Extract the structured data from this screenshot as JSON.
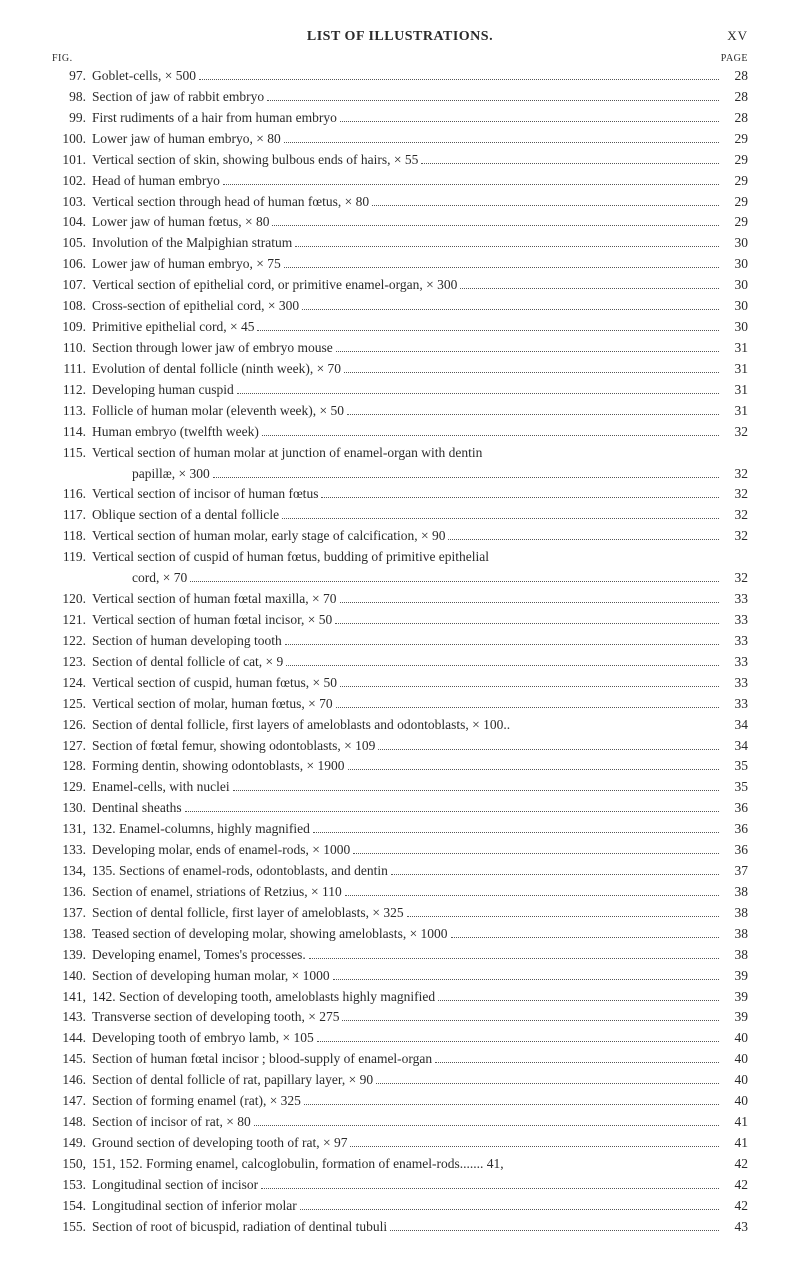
{
  "header": {
    "title": "LIST OF ILLUSTRATIONS.",
    "roman_page": "XV",
    "col_left": "FIG.",
    "col_right": "PAGE"
  },
  "entries": [
    {
      "fig": "97.",
      "desc": "Goblet-cells, × 500",
      "page": "28"
    },
    {
      "fig": "98.",
      "desc": "Section of jaw of rabbit embryo",
      "page": "28"
    },
    {
      "fig": "99.",
      "desc": "First rudiments of a hair from human embryo",
      "page": "28"
    },
    {
      "fig": "100.",
      "desc": "Lower jaw of human embryo, × 80",
      "page": "29"
    },
    {
      "fig": "101.",
      "desc": "Vertical section of skin, showing bulbous ends of hairs, × 55",
      "page": "29"
    },
    {
      "fig": "102.",
      "desc": "Head of human embryo",
      "page": "29"
    },
    {
      "fig": "103.",
      "desc": "Vertical section through head of human fœtus, × 80",
      "page": "29"
    },
    {
      "fig": "104.",
      "desc": "Lower jaw of human fœtus, × 80",
      "page": "29"
    },
    {
      "fig": "105.",
      "desc": "Involution of the Malpighian stratum",
      "page": "30"
    },
    {
      "fig": "106.",
      "desc": "Lower jaw of human embryo, × 75",
      "page": "30"
    },
    {
      "fig": "107.",
      "desc": "Vertical section of epithelial cord, or primitive enamel-organ, × 300",
      "page": "30"
    },
    {
      "fig": "108.",
      "desc": "Cross-section of epithelial cord, × 300",
      "page": "30"
    },
    {
      "fig": "109.",
      "desc": "Primitive epithelial cord, × 45",
      "page": "30"
    },
    {
      "fig": "110.",
      "desc": "Section through lower jaw of embryo mouse",
      "page": "31"
    },
    {
      "fig": "111.",
      "desc": "Evolution of dental follicle (ninth week), × 70",
      "page": "31"
    },
    {
      "fig": "112.",
      "desc": "Developing human cuspid",
      "page": "31"
    },
    {
      "fig": "113.",
      "desc": "Follicle of human molar (eleventh week), × 50",
      "page": "31"
    },
    {
      "fig": "114.",
      "desc": "Human embryo (twelfth week)",
      "page": "32"
    },
    {
      "fig": "115.",
      "multi": true,
      "line1": "Vertical section of human molar at junction of enamel-organ with dentin",
      "line2": "papillæ, × 300",
      "page": "32"
    },
    {
      "fig": "116.",
      "desc": "Vertical section of incisor of human fœtus",
      "page": "32"
    },
    {
      "fig": "117.",
      "desc": "Oblique section of a dental follicle",
      "page": "32"
    },
    {
      "fig": "118.",
      "desc": "Vertical section of human molar, early stage of calcification, × 90",
      "page": "32"
    },
    {
      "fig": "119.",
      "multi": true,
      "line1": "Vertical section of cuspid of human fœtus, budding of primitive epithelial",
      "line2": "cord, × 70",
      "page": "32"
    },
    {
      "fig": "120.",
      "desc": "Vertical section of human fœtal maxilla, × 70",
      "page": "33"
    },
    {
      "fig": "121.",
      "desc": "Vertical section of human fœtal incisor, × 50",
      "page": "33"
    },
    {
      "fig": "122.",
      "desc": "Section of human developing tooth",
      "page": "33"
    },
    {
      "fig": "123.",
      "desc": "Section of dental follicle of cat, × 9",
      "page": "33"
    },
    {
      "fig": "124.",
      "desc": "Vertical section of cuspid, human fœtus, × 50",
      "page": "33"
    },
    {
      "fig": "125.",
      "desc": "Vertical section of molar, human fœtus, × 70",
      "page": "33"
    },
    {
      "fig": "126.",
      "desc": "Section of dental follicle, first layers of ameloblasts and odontoblasts, × 100..",
      "page": "34",
      "nodots": true
    },
    {
      "fig": "127.",
      "desc": "Section of fœtal femur, showing odontoblasts, × 109",
      "page": "34"
    },
    {
      "fig": "128.",
      "desc": "Forming dentin, showing odontoblasts, × 1900",
      "page": "35"
    },
    {
      "fig": "129.",
      "desc": "Enamel-cells, with nuclei",
      "page": "35"
    },
    {
      "fig": "130.",
      "desc": "Dentinal sheaths",
      "page": "36"
    },
    {
      "fig": "131,",
      "desc": "132. Enamel-columns, highly magnified",
      "page": "36"
    },
    {
      "fig": "133.",
      "desc": "Developing molar, ends of enamel-rods, × 1000",
      "page": "36"
    },
    {
      "fig": "134,",
      "desc": "135. Sections of enamel-rods, odontoblasts, and dentin",
      "page": "37"
    },
    {
      "fig": "136.",
      "desc": "Section of enamel, striations of Retzius, × 110",
      "page": "38"
    },
    {
      "fig": "137.",
      "desc": "Section of dental follicle, first layer of ameloblasts, × 325",
      "page": "38"
    },
    {
      "fig": "138.",
      "desc": "Teased section of developing molar, showing ameloblasts, × 1000",
      "page": "38"
    },
    {
      "fig": "139.",
      "desc": "Developing enamel, Tomes's processes.",
      "page": "38"
    },
    {
      "fig": "140.",
      "desc": "Section of developing human molar, × 1000",
      "page": "39"
    },
    {
      "fig": "141,",
      "desc": "142. Section of developing tooth, ameloblasts highly magnified",
      "page": "39"
    },
    {
      "fig": "143.",
      "desc": "Transverse section of developing tooth, × 275",
      "page": "39"
    },
    {
      "fig": "144.",
      "desc": "Developing tooth of embryo lamb, × 105",
      "page": "40"
    },
    {
      "fig": "145.",
      "desc": "Section of human fœtal incisor ; blood-supply of enamel-organ",
      "page": "40"
    },
    {
      "fig": "146.",
      "desc": "Section of dental follicle of rat, papillary layer, × 90",
      "page": "40"
    },
    {
      "fig": "147.",
      "desc": "Section of forming enamel (rat), × 325",
      "page": "40"
    },
    {
      "fig": "148.",
      "desc": "Section of incisor of rat, × 80",
      "page": "41"
    },
    {
      "fig": "149.",
      "desc": "Ground section of developing tooth of rat, × 97",
      "page": "41"
    },
    {
      "fig": "150,",
      "desc": "151, 152. Forming enamel, calcoglobulin, formation of enamel-rods....... 41,",
      "page": "42",
      "nodots": true
    },
    {
      "fig": "153.",
      "desc": "Longitudinal section of incisor",
      "page": "42"
    },
    {
      "fig": "154.",
      "desc": "Longitudinal section of inferior molar",
      "page": "42"
    },
    {
      "fig": "155.",
      "desc": "Section of root of bicuspid, radiation of dentinal tubuli",
      "page": "43"
    }
  ]
}
